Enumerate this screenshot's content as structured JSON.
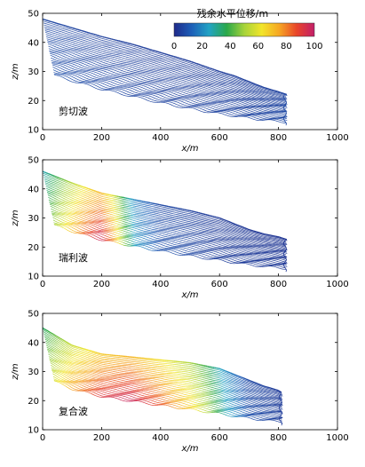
{
  "colorbar": {
    "title": "残余水平位移/m",
    "ticks": [
      0,
      20,
      40,
      60,
      80,
      100
    ],
    "range": [
      0,
      100
    ],
    "colormap": [
      "#1f2a8a",
      "#1d5fb8",
      "#22a3c4",
      "#2aa84a",
      "#a6d33a",
      "#f2e52a",
      "#f6a623",
      "#e8442a",
      "#c21f6a"
    ]
  },
  "chart_data": [
    {
      "type": "line",
      "title": "剪切波",
      "xlabel": "x/m",
      "ylabel": "z/m",
      "xlim": [
        0,
        1000
      ],
      "ylim": [
        10,
        50
      ],
      "xticks": [
        0,
        200,
        400,
        600,
        800,
        1000
      ],
      "yticks": [
        10,
        20,
        30,
        40,
        50
      ],
      "surface": {
        "x": [
          0,
          100,
          200,
          300,
          400,
          500,
          600,
          650,
          700,
          750,
          800,
          830
        ],
        "z": [
          48,
          45,
          42,
          39.5,
          36.5,
          33.5,
          30,
          28.5,
          26.5,
          24.5,
          23,
          22
        ]
      },
      "displacement_profile": {
        "x": [
          0,
          200,
          400,
          600,
          800,
          830
        ],
        "value": [
          8,
          6,
          5,
          5,
          6,
          7
        ]
      }
    },
    {
      "type": "line",
      "title": "瑞利波",
      "xlabel": "x/m",
      "ylabel": "z/m",
      "xlim": [
        0,
        1000
      ],
      "ylim": [
        10,
        50
      ],
      "xticks": [
        0,
        200,
        400,
        600,
        800,
        1000
      ],
      "yticks": [
        10,
        20,
        30,
        40,
        50
      ],
      "surface": {
        "x": [
          0,
          100,
          200,
          300,
          400,
          500,
          600,
          650,
          700,
          750,
          800,
          830
        ],
        "z": [
          46,
          42,
          38.5,
          36.5,
          34.5,
          32.5,
          30,
          28,
          26,
          24.5,
          23.5,
          22.5
        ]
      },
      "displacement_profile": {
        "x": [
          0,
          80,
          150,
          200,
          240,
          280,
          320,
          400,
          600,
          830
        ],
        "value": [
          30,
          55,
          75,
          85,
          70,
          40,
          20,
          8,
          4,
          3
        ]
      }
    },
    {
      "type": "line",
      "title": "复合波",
      "xlabel": "x/m",
      "ylabel": "z/m",
      "xlim": [
        0,
        1000
      ],
      "ylim": [
        10,
        50
      ],
      "xticks": [
        0,
        200,
        400,
        600,
        800,
        1000
      ],
      "yticks": [
        10,
        20,
        30,
        40,
        50
      ],
      "surface": {
        "x": [
          0,
          100,
          200,
          300,
          400,
          500,
          600,
          650,
          700,
          750,
          800,
          815
        ],
        "z": [
          45,
          39,
          36,
          35,
          34,
          33,
          31,
          29,
          27,
          25,
          23.5,
          22.5
        ]
      },
      "displacement_profile": {
        "x": [
          0,
          100,
          200,
          300,
          400,
          500,
          560,
          620,
          700,
          815
        ],
        "value": [
          40,
          65,
          80,
          85,
          75,
          60,
          45,
          25,
          8,
          4
        ]
      }
    }
  ]
}
